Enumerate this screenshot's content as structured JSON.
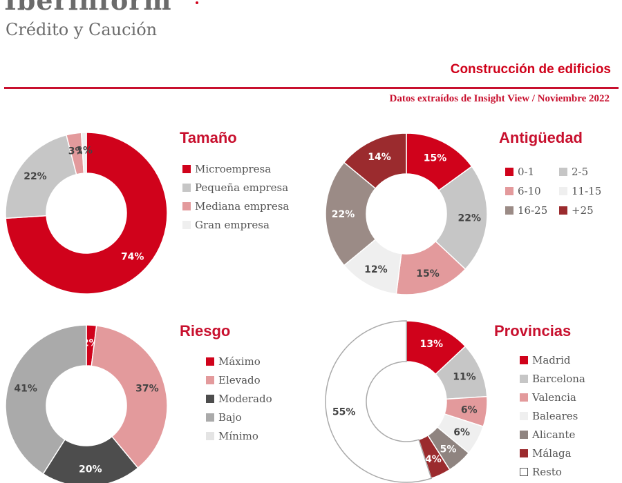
{
  "header": {
    "logo_line1": "Iberinform",
    "logo_line2": "Crédito y Caución",
    "title": "Construcción de edificios",
    "source": "Datos extraídos de Insight View / Noviembre  2022"
  },
  "chart_data": [
    {
      "id": "tamano",
      "type": "pie",
      "title": "Tamaño",
      "categories": [
        "Microempresa",
        "Pequeña empresa",
        "Mediana empresa",
        "Gran empresa"
      ],
      "values": [
        74,
        22,
        3,
        1
      ],
      "labels": [
        "74%",
        "22%",
        "3%",
        "1%"
      ],
      "colors": [
        "#d0021b",
        "#c6c6c6",
        "#e39a9c",
        "#efefef"
      ]
    },
    {
      "id": "antiguedad",
      "type": "pie",
      "title": "Antigüedad",
      "categories": [
        "0-1",
        "2-5",
        "6-10",
        "11-15",
        "16-25",
        "+25"
      ],
      "values": [
        15,
        22,
        15,
        12,
        22,
        14
      ],
      "labels": [
        "15%",
        "22%",
        "15%",
        "12%",
        "22%",
        "14%"
      ],
      "colors": [
        "#d0021b",
        "#c6c6c6",
        "#e39a9c",
        "#efefef",
        "#9b8b86",
        "#9b2b2e"
      ]
    },
    {
      "id": "riesgo",
      "type": "pie",
      "title": "Riesgo",
      "categories": [
        "Máximo",
        "Elevado",
        "Moderado",
        "Bajo",
        "Mínimo"
      ],
      "values": [
        2,
        37,
        20,
        41,
        0
      ],
      "labels": [
        "2%",
        "37%",
        "20%",
        "41%",
        ""
      ],
      "colors": [
        "#d0021b",
        "#e39a9c",
        "#4d4d4d",
        "#aaaaaa",
        "#e4e4e4"
      ]
    },
    {
      "id": "provincias",
      "type": "pie",
      "title": "Provincias",
      "categories": [
        "Madrid",
        "Barcelona",
        "Valencia",
        "Baleares",
        "Alicante",
        "Málaga",
        "Resto"
      ],
      "values": [
        13,
        11,
        6,
        6,
        5,
        4,
        55
      ],
      "labels": [
        "13%",
        "11%",
        "6%",
        "6%",
        "5%",
        "4%",
        "55%"
      ],
      "colors": [
        "#d0021b",
        "#c6c6c6",
        "#e39a9c",
        "#efefef",
        "#8f8480",
        "#9b2b2e",
        "#ffffff"
      ]
    }
  ]
}
